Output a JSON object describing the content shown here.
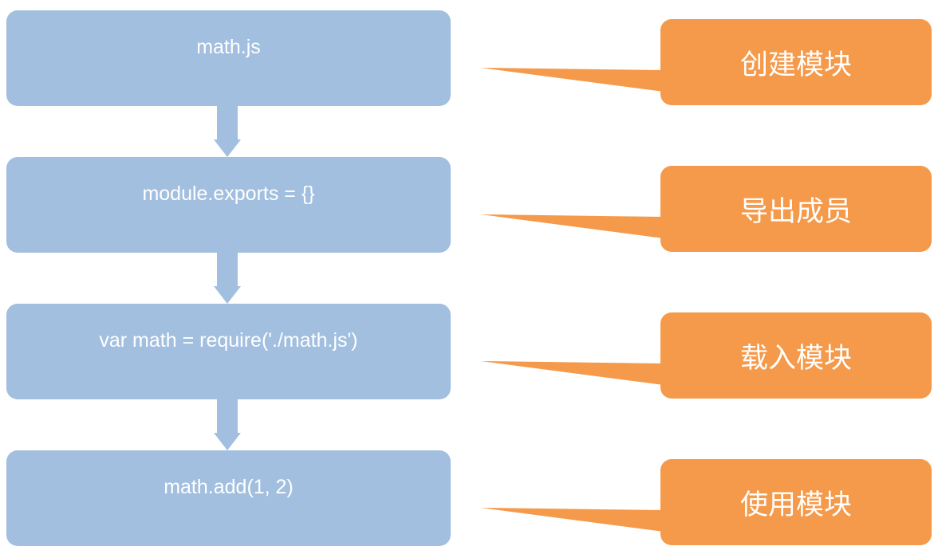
{
  "steps": [
    {
      "code": "math.js",
      "label": "创建模块"
    },
    {
      "code": "module.exports = {}",
      "label": "导出成员"
    },
    {
      "code": "var math = require('./math.js')",
      "label": "载入模块"
    },
    {
      "code": "math.add(1, 2)",
      "label": "使用模块"
    }
  ],
  "colors": {
    "step_box": "#a2bfdf",
    "arrow": "#a2bfdf",
    "callout": "#f5994a",
    "text": "#ffffff"
  }
}
